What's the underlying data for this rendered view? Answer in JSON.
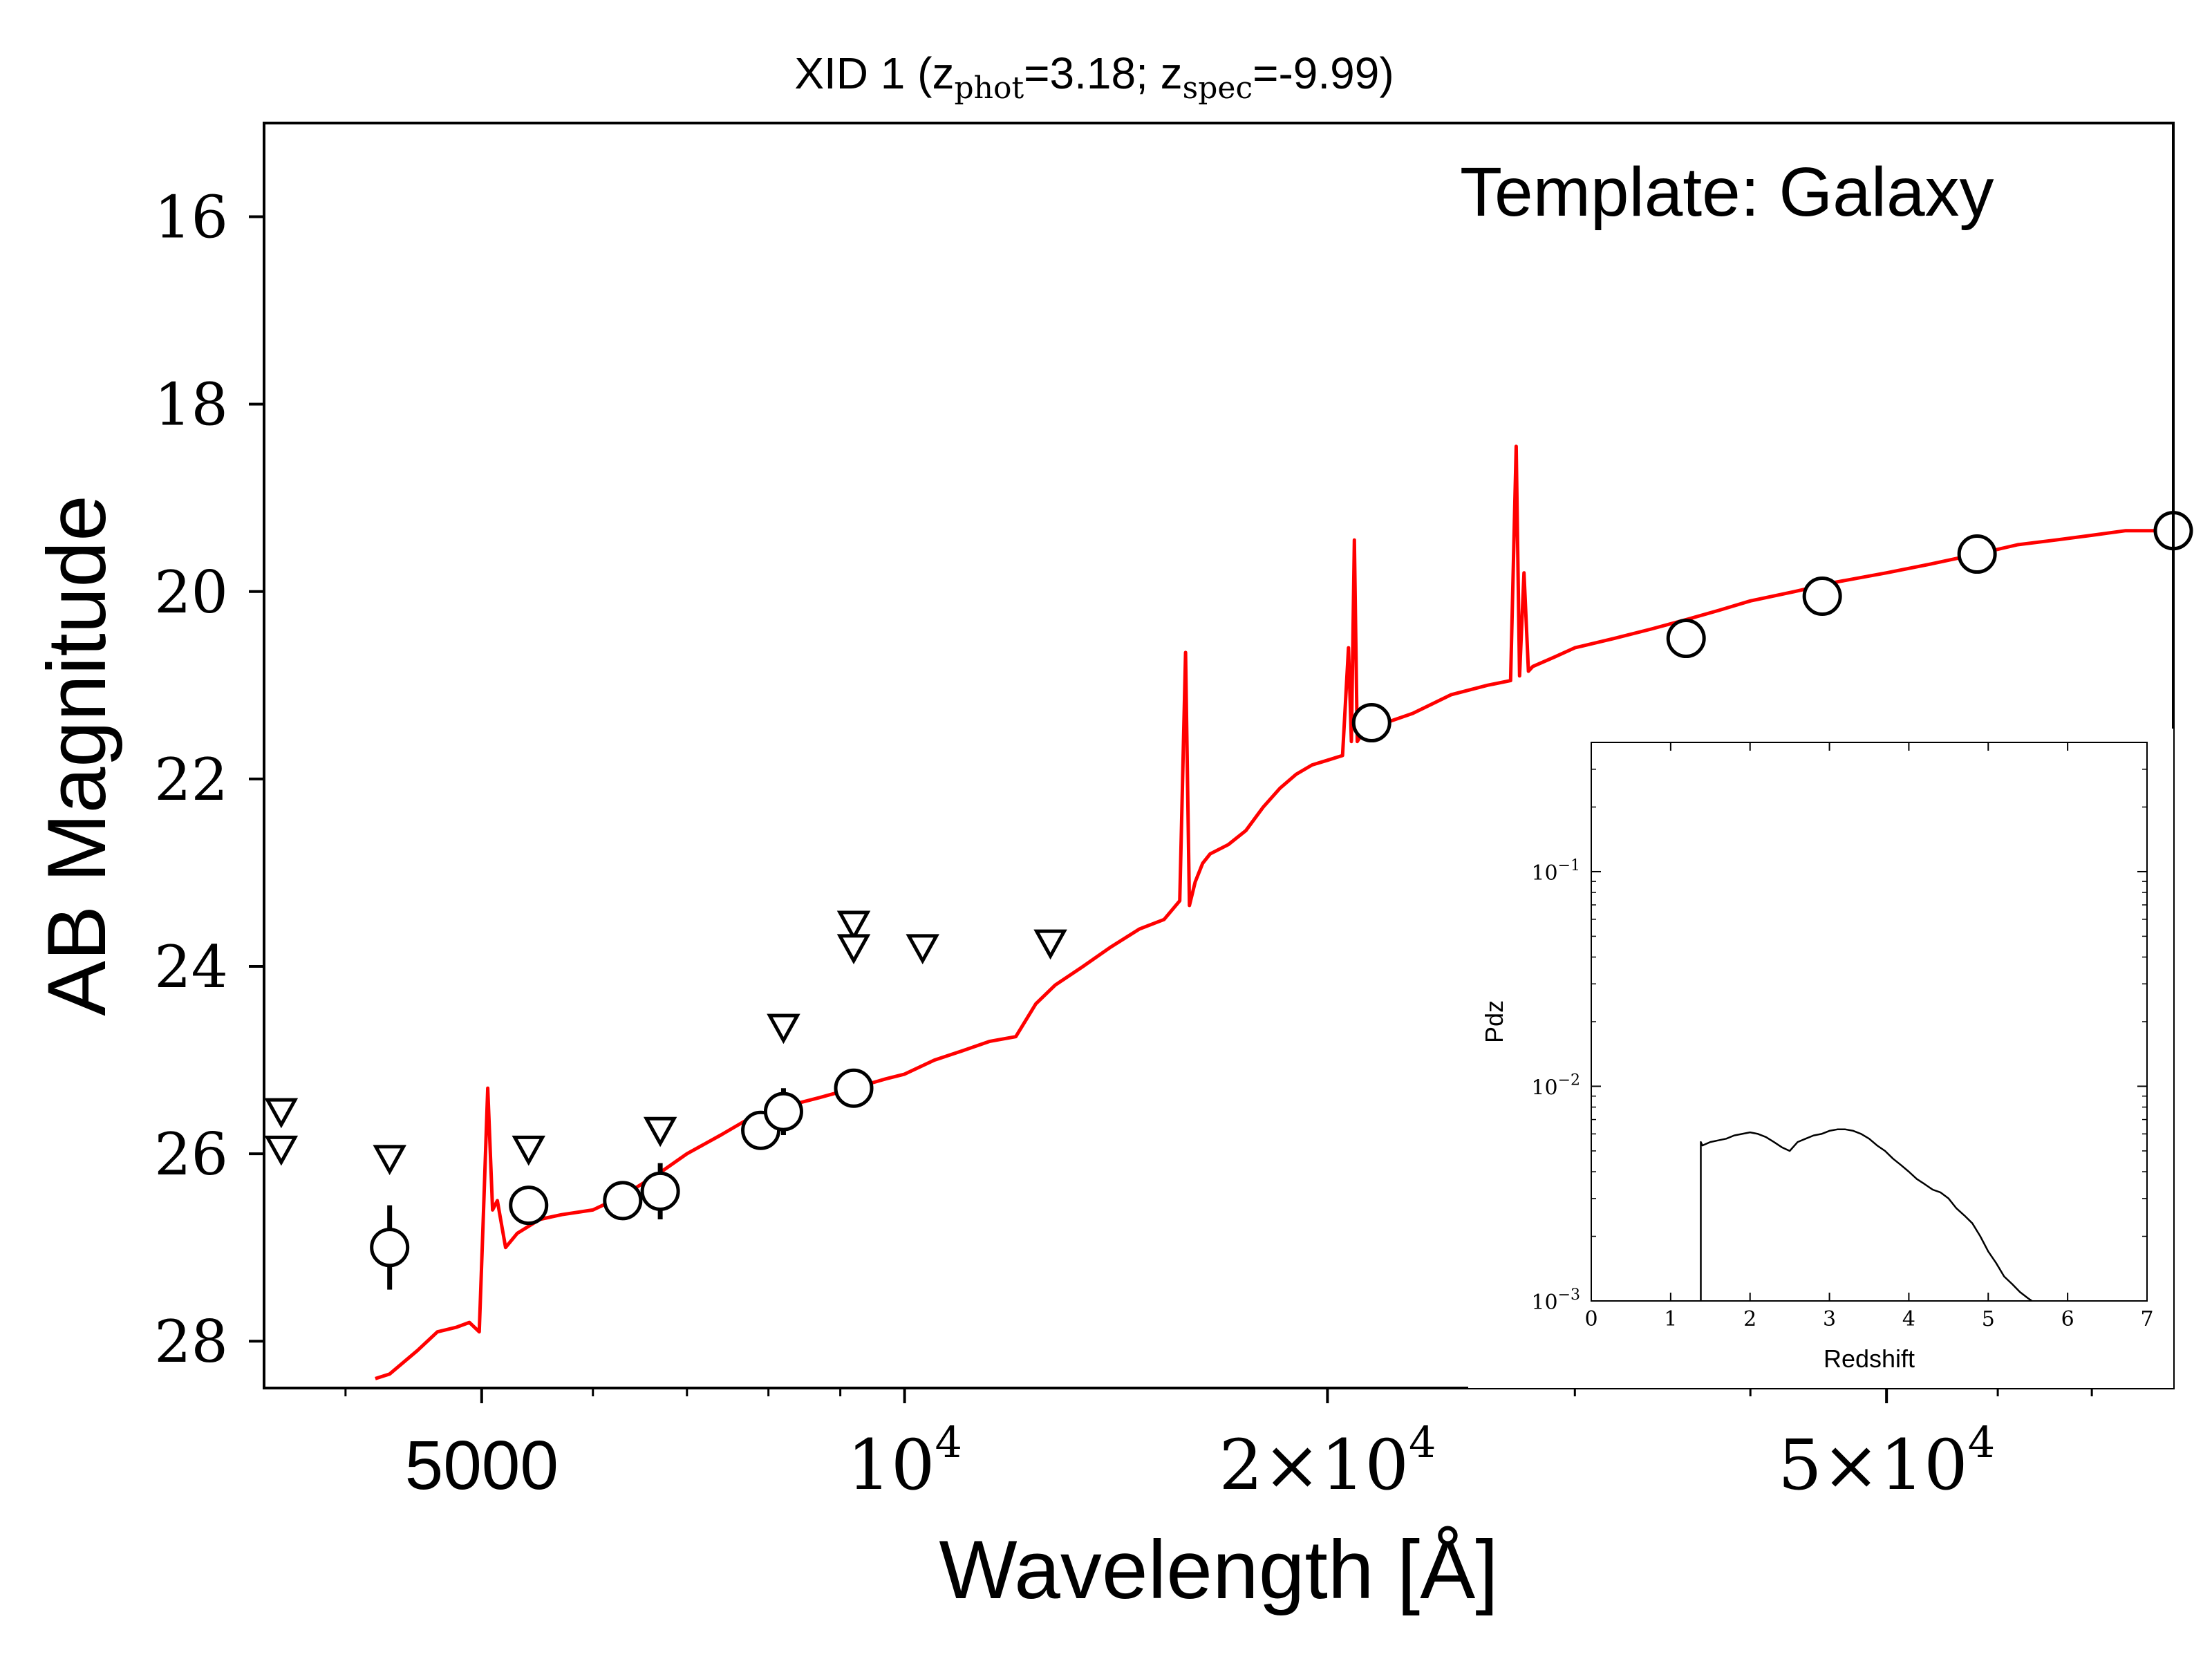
{
  "chart_data": [
    {
      "type": "scatter",
      "title": "XID 1 (z_phot=3.18; z_spec=-9.99)",
      "title_parts": {
        "prefix": "XID 1 (z",
        "sub1": "phot",
        "mid": "=3.18; z",
        "sub2": "spec",
        "suffix": "=-9.99)"
      },
      "xlabel": "Wavelength [Å]",
      "ylabel": "AB Magnitude",
      "annotation": "Template: Galaxy",
      "xscale": "log",
      "xlim": [
        3500,
        80000
      ],
      "ylim": [
        28.5,
        15.0
      ],
      "y_inverted": true,
      "x_ticks": [
        {
          "value": 5000,
          "label": "5000",
          "style": "plain"
        },
        {
          "value": 10000,
          "base": "10",
          "exp": "4",
          "style": "pow"
        },
        {
          "value": 20000,
          "coef": "2",
          "base": "10",
          "exp": "4",
          "style": "sci"
        },
        {
          "value": 50000,
          "coef": "5",
          "base": "10",
          "exp": "4",
          "style": "sci"
        }
      ],
      "x_minor_ticks": [
        4000,
        6000,
        7000,
        8000,
        9000,
        30000,
        40000,
        60000,
        70000
      ],
      "y_ticks": [
        16,
        18,
        20,
        22,
        24,
        26,
        28
      ],
      "grid": false,
      "series": [
        {
          "kind": "detections",
          "marker": "open-circle",
          "color": "#000000",
          "points": [
            {
              "x": 4300,
              "y": 27.0,
              "err": 0.45
            },
            {
              "x": 5400,
              "y": 26.55,
              "err": 0.12
            },
            {
              "x": 6300,
              "y": 26.5,
              "err": 0.08
            },
            {
              "x": 6700,
              "y": 26.4,
              "err": 0.3
            },
            {
              "x": 7900,
              "y": 25.75,
              "err": 0.1
            },
            {
              "x": 8200,
              "y": 25.55,
              "err": 0.25
            },
            {
              "x": 9200,
              "y": 25.3,
              "err": 0.08
            },
            {
              "x": 21500,
              "y": 21.4,
              "err": 0.05
            },
            {
              "x": 36000,
              "y": 20.5,
              "err": 0.05
            },
            {
              "x": 45000,
              "y": 20.05,
              "err": 0.05
            },
            {
              "x": 58000,
              "y": 19.6,
              "err": 0.05
            },
            {
              "x": 80000,
              "y": 19.35,
              "err": 0.05
            }
          ]
        },
        {
          "kind": "upper-limits",
          "marker": "open-triangle-down",
          "color": "#000000",
          "points": [
            {
              "x": 3600,
              "y": 25.55
            },
            {
              "x": 3600,
              "y": 25.95
            },
            {
              "x": 4300,
              "y": 26.05
            },
            {
              "x": 5400,
              "y": 25.95
            },
            {
              "x": 6700,
              "y": 25.75
            },
            {
              "x": 8200,
              "y": 24.65
            },
            {
              "x": 9200,
              "y": 23.55
            },
            {
              "x": 9200,
              "y": 23.8
            },
            {
              "x": 10300,
              "y": 23.8
            },
            {
              "x": 12700,
              "y": 23.75
            }
          ]
        },
        {
          "kind": "template",
          "name": "",
          "color": "#ff0000",
          "x": [
            4200,
            4300,
            4500,
            4650,
            4800,
            4900,
            4980,
            5010,
            5050,
            5090,
            5130,
            5200,
            5300,
            5500,
            5700,
            6000,
            6300,
            6700,
            7000,
            7400,
            7800,
            8200,
            8700,
            9200,
            9700,
            10000,
            10500,
            11000,
            11500,
            12000,
            12400,
            12800,
            13400,
            14000,
            14700,
            15300,
            15700,
            15850,
            15950,
            16100,
            16300,
            16500,
            17000,
            17500,
            18000,
            18500,
            19000,
            19500,
            20000,
            20500,
            20700,
            20800,
            20900,
            21000,
            21100,
            21300,
            22000,
            23000,
            24500,
            26000,
            27000,
            27250,
            27400,
            27600,
            27800,
            28000,
            29000,
            30000,
            32000,
            34000,
            36000,
            38000,
            40000,
            43000,
            46000,
            50000,
            54000,
            58000,
            62000,
            66000,
            70000,
            74000,
            78000,
            82000
          ],
          "y": [
            28.4,
            28.35,
            28.1,
            27.9,
            27.85,
            27.8,
            27.9,
            26.8,
            25.3,
            26.6,
            26.5,
            27.0,
            26.85,
            26.7,
            26.65,
            26.6,
            26.45,
            26.2,
            26.0,
            25.8,
            25.6,
            25.5,
            25.4,
            25.3,
            25.2,
            25.15,
            25.0,
            24.9,
            24.8,
            24.75,
            24.4,
            24.2,
            24.0,
            23.8,
            23.6,
            23.5,
            23.3,
            20.65,
            23.35,
            23.1,
            22.9,
            22.8,
            22.7,
            22.55,
            22.3,
            22.1,
            21.95,
            21.85,
            21.8,
            21.75,
            20.6,
            21.6,
            19.45,
            21.6,
            21.55,
            21.5,
            21.4,
            21.3,
            21.1,
            21.0,
            20.95,
            18.45,
            20.9,
            19.8,
            20.85,
            20.8,
            20.7,
            20.6,
            20.5,
            20.4,
            20.3,
            20.2,
            20.1,
            20.0,
            19.9,
            19.8,
            19.7,
            19.6,
            19.5,
            19.45,
            19.4,
            19.35,
            19.35,
            19.35
          ]
        }
      ]
    },
    {
      "type": "line",
      "role": "inset",
      "xlabel": "Redshift",
      "ylabel": "Pdz",
      "xscale": "linear",
      "yscale": "log",
      "xlim": [
        0,
        7
      ],
      "ylim": [
        0.001,
        0.4
      ],
      "x_ticks": [
        0,
        1,
        2,
        3,
        4,
        5,
        6,
        7
      ],
      "y_ticks": [
        {
          "value": 0.1,
          "base": "10",
          "exp": "−1"
        },
        {
          "value": 0.01,
          "base": "10",
          "exp": "−2"
        },
        {
          "value": 0.001,
          "base": "10",
          "exp": "−3"
        }
      ],
      "series": [
        {
          "color": "#000000",
          "x": [
            1.38,
            1.38,
            1.4,
            1.5,
            1.6,
            1.7,
            1.8,
            1.9,
            2.0,
            2.1,
            2.2,
            2.3,
            2.4,
            2.5,
            2.6,
            2.7,
            2.8,
            2.9,
            3.0,
            3.1,
            3.2,
            3.3,
            3.4,
            3.5,
            3.6,
            3.7,
            3.8,
            3.9,
            4.0,
            4.1,
            4.2,
            4.3,
            4.4,
            4.5,
            4.6,
            4.7,
            4.8,
            4.9,
            5.0,
            5.1,
            5.2,
            5.3,
            5.4,
            5.5,
            5.55
          ],
          "y": [
            0.001,
            0.0055,
            0.0053,
            0.0055,
            0.0056,
            0.0057,
            0.0059,
            0.006,
            0.0061,
            0.006,
            0.0058,
            0.0055,
            0.0052,
            0.005,
            0.0055,
            0.0057,
            0.0059,
            0.006,
            0.0062,
            0.0063,
            0.0063,
            0.0062,
            0.006,
            0.0057,
            0.0053,
            0.005,
            0.0046,
            0.0043,
            0.004,
            0.0037,
            0.0035,
            0.0033,
            0.0032,
            0.003,
            0.0027,
            0.0025,
            0.0023,
            0.002,
            0.0017,
            0.0015,
            0.0013,
            0.0012,
            0.0011,
            0.00103,
            0.001
          ]
        }
      ]
    }
  ]
}
